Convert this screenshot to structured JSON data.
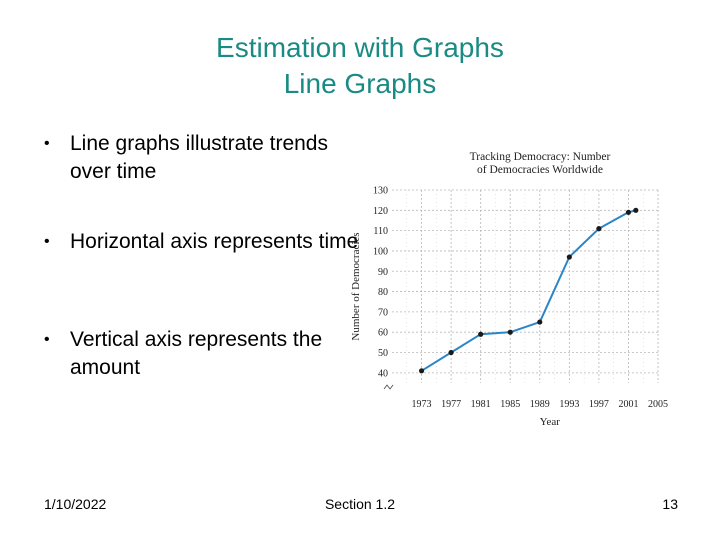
{
  "slide": {
    "title_line1": "Estimation with Graphs",
    "title_line2": "Line Graphs",
    "bullets": [
      "Line graphs illustrate trends over time",
      "Horizontal axis represents time",
      "Vertical axis represents the amount"
    ],
    "footer": {
      "date": "1/10/2022",
      "section": "Section 1.2",
      "page": "13"
    }
  },
  "chart_data": {
    "type": "line",
    "title_line1": "Tracking Democracy: Number",
    "title_line2": "of Democracies Worldwide",
    "xlabel": "Year",
    "ylabel": "Number of Democracies",
    "x_ticks": [
      "1973",
      "1977",
      "1981",
      "1985",
      "1989",
      "1993",
      "1997",
      "2001",
      "2005"
    ],
    "y_ticks": [
      "40",
      "50",
      "60",
      "70",
      "80",
      "90",
      "100",
      "110",
      "120",
      "130"
    ],
    "xlim": [
      1969,
      2005
    ],
    "ylim": [
      35,
      130
    ],
    "grid": true,
    "x": [
      1973,
      1977,
      1981,
      1985,
      1989,
      1993,
      1997,
      2001,
      2002
    ],
    "values": [
      41,
      50,
      59,
      60,
      65,
      97,
      111,
      119,
      120
    ],
    "colors": {
      "line": "#2a86c8",
      "point": "#1a1a1a",
      "grid": "#b8b8b8",
      "title": "#1a8a84"
    }
  }
}
